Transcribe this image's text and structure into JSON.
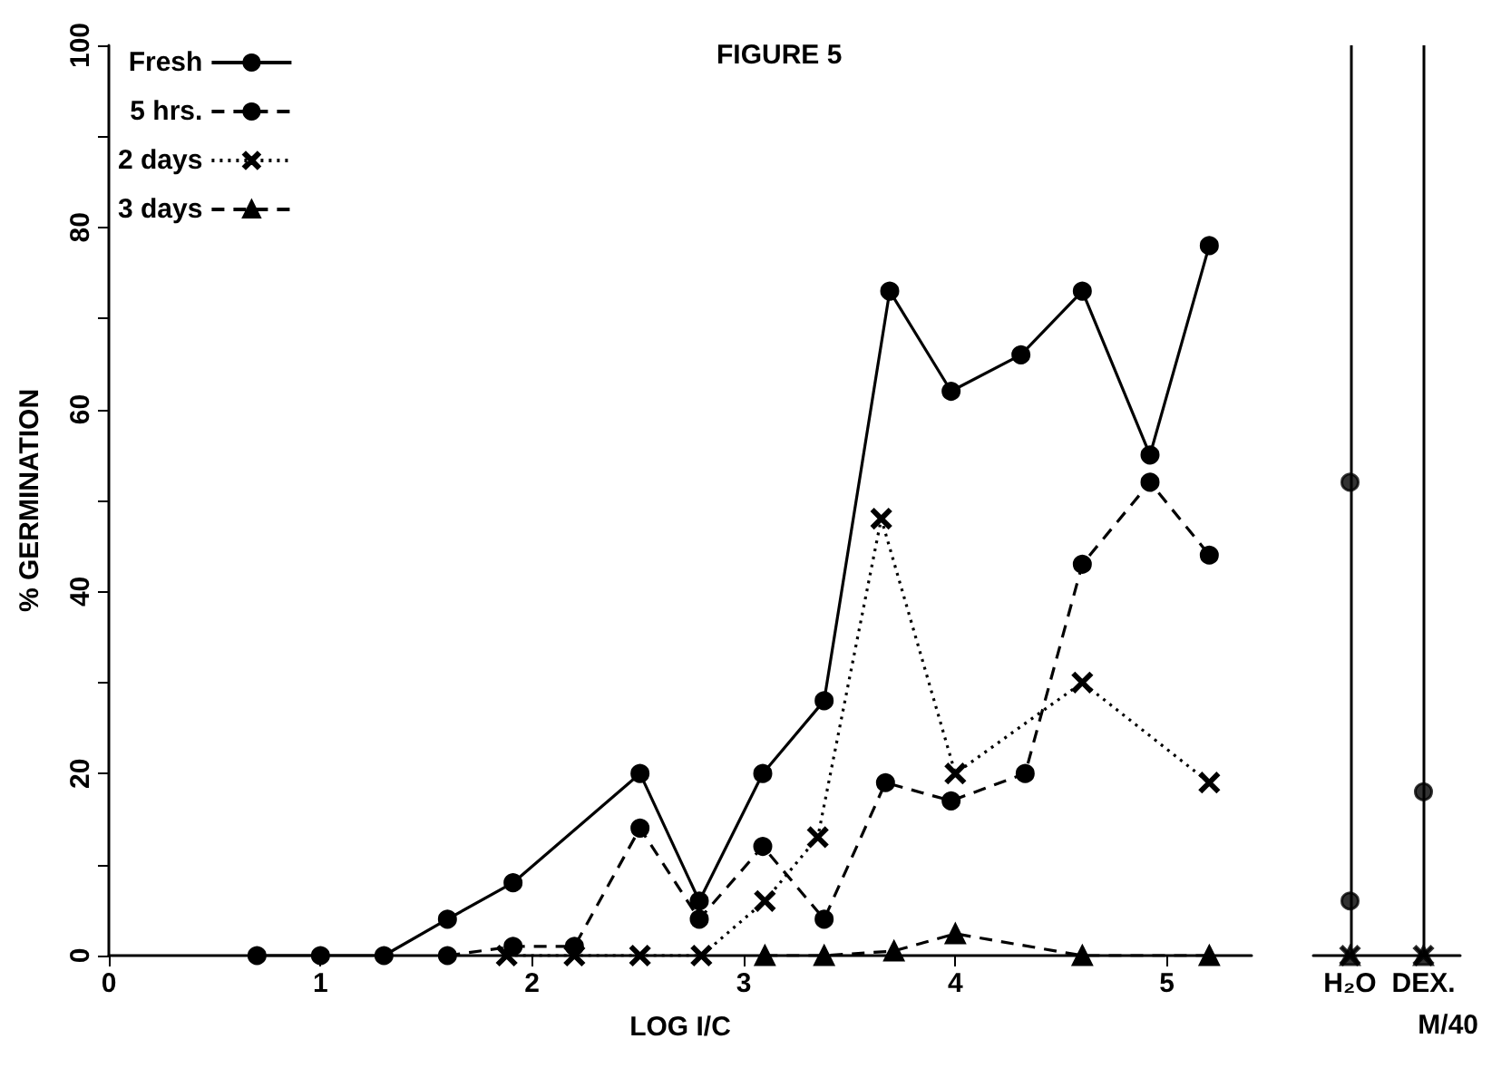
{
  "chart_data": [
    {
      "type": "line",
      "title": "FIGURE 5",
      "xlabel": "LOG I/C",
      "ylabel": "% GERMINATION",
      "xlim": [
        0,
        5.4
      ],
      "xticks": [
        0,
        1,
        2,
        3,
        4,
        5
      ],
      "ylim": [
        0,
        100
      ],
      "yticks": [
        0,
        {
          "value": 10,
          "label": null
        },
        20,
        {
          "value": 30,
          "label": null
        },
        40,
        {
          "value": 50,
          "label": null
        },
        60,
        {
          "value": 70,
          "label": null
        },
        80,
        {
          "value": 90,
          "label": null
        },
        100
      ],
      "legend": "top left",
      "series": [
        {
          "name": "Fresh",
          "color": "#000000",
          "marker": "circle",
          "line_style": "solid",
          "x": [
            0.7,
            1.0,
            1.3,
            1.6,
            1.91,
            2.51,
            2.79,
            3.09,
            3.38,
            3.69,
            3.98,
            4.31,
            4.6,
            4.92,
            5.2
          ],
          "values": [
            0,
            0,
            0,
            4,
            8,
            20,
            6,
            20,
            28,
            73,
            62,
            66,
            73,
            55,
            78
          ]
        },
        {
          "name": "5 hrs.",
          "color": "#000000",
          "marker": "circle",
          "line_style": "dashed",
          "x": [
            1.6,
            1.91,
            2.2,
            2.51,
            2.79,
            3.09,
            3.38,
            3.67,
            3.98,
            4.33,
            4.6,
            4.92,
            5.2
          ],
          "values": [
            0,
            1,
            1,
            14,
            4,
            12,
            4,
            19,
            17,
            20,
            43,
            52,
            44
          ]
        },
        {
          "name": "2 days",
          "color": "#000000",
          "marker": "cross",
          "line_style": "dotted",
          "x": [
            1.88,
            2.2,
            2.51,
            2.8,
            3.1,
            3.35,
            3.65,
            4.0,
            4.6,
            5.2
          ],
          "values": [
            0,
            0,
            0,
            0,
            6,
            13,
            48,
            20,
            30,
            19
          ]
        },
        {
          "name": "3 days",
          "color": "#000000",
          "marker": "triangle",
          "line_style": "dashed",
          "x": [
            3.1,
            3.38,
            3.71,
            4.0,
            4.6,
            5.2
          ],
          "values": [
            0,
            0,
            0.5,
            2.4,
            0,
            0
          ]
        }
      ]
    },
    {
      "type": "scatter",
      "categories": [
        "H₂O",
        "DEX."
      ],
      "ylim": [
        0,
        100
      ],
      "tick_labels": "x",
      "annotations": [
        "M/40"
      ],
      "ref_lines": [
        {
          "axis": "x",
          "value": "H₂O",
          "color": "#000000"
        },
        {
          "axis": "x",
          "value": "DEX.",
          "color": "#000000"
        }
      ],
      "series": [
        {
          "color": "#000000",
          "marker": "circle",
          "values": [
            52,
            null
          ]
        },
        {
          "color": "#000000",
          "marker": "circle",
          "values": [
            6,
            18
          ]
        },
        {
          "color": "#000000",
          "marker": "cross",
          "values": [
            0,
            0
          ]
        },
        {
          "color": "#000000",
          "marker": "triangle",
          "values": [
            0,
            0
          ]
        }
      ]
    }
  ]
}
